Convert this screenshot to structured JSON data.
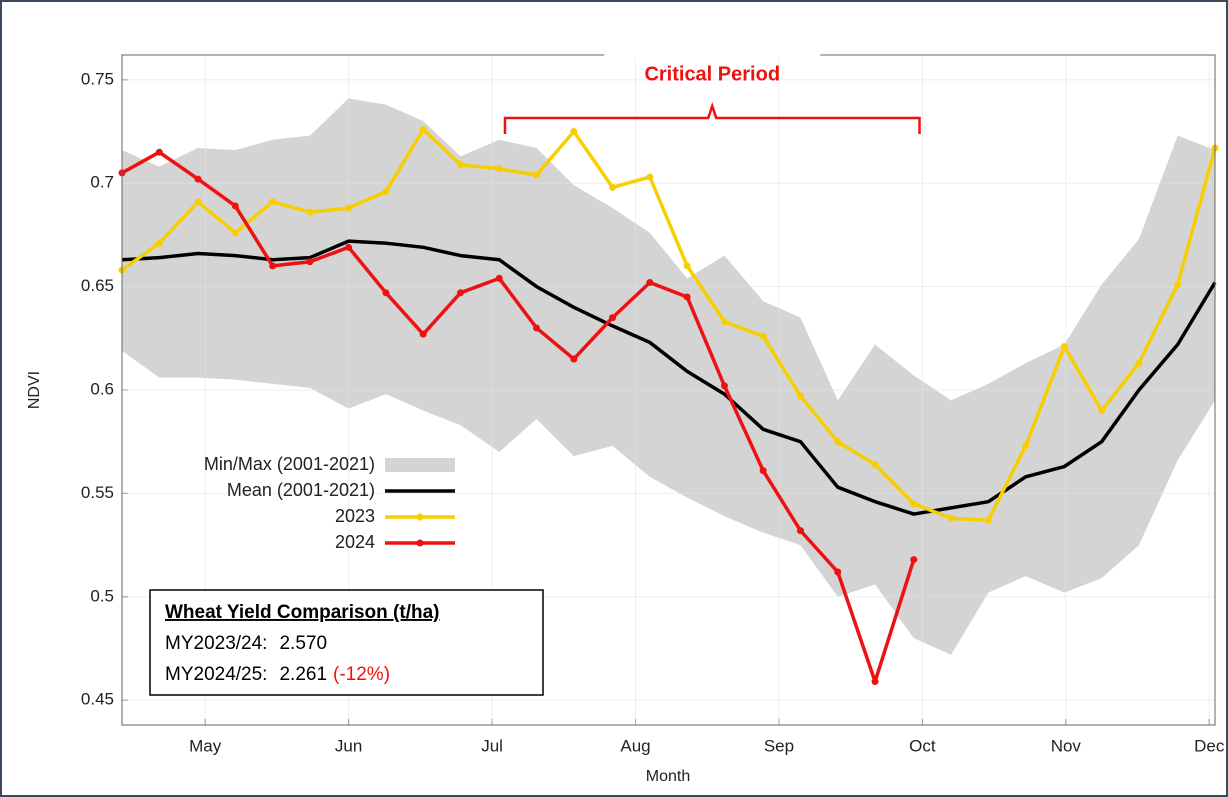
{
  "chart_data": {
    "type": "line",
    "y_label": "NDVI",
    "x_label": "Month",
    "x": [
      4.42,
      4.68,
      4.95,
      5.21,
      5.47,
      5.73,
      6.0,
      6.26,
      6.52,
      6.78,
      7.05,
      7.31,
      7.57,
      7.84,
      8.1,
      8.36,
      8.62,
      8.89,
      9.15,
      9.41,
      9.67,
      9.94,
      10.2,
      10.46,
      10.72,
      10.99,
      11.25,
      11.51,
      11.78,
      12.04
    ],
    "xlim": [
      4.42,
      12.04
    ],
    "xticks": [
      {
        "value": 5,
        "label": "May"
      },
      {
        "value": 6,
        "label": "Jun"
      },
      {
        "value": 7,
        "label": "Jul"
      },
      {
        "value": 8,
        "label": "Aug"
      },
      {
        "value": 9,
        "label": "Sep"
      },
      {
        "value": 10,
        "label": "Oct"
      },
      {
        "value": 11,
        "label": "Nov"
      },
      {
        "value": 12,
        "label": "Dec"
      }
    ],
    "ylim": [
      0.438,
      0.762
    ],
    "yticks": [
      0.45,
      0.5,
      0.55,
      0.6,
      0.65,
      0.7,
      0.75
    ],
    "grid": true,
    "band": {
      "name": "Min/Max (2001-2021)",
      "color": "#d4d4d4",
      "max": [
        0.716,
        0.708,
        0.717,
        0.716,
        0.721,
        0.723,
        0.741,
        0.738,
        0.73,
        0.713,
        0.721,
        0.717,
        0.699,
        0.688,
        0.676,
        0.654,
        0.665,
        0.643,
        0.635,
        0.595,
        0.622,
        0.607,
        0.595,
        0.603,
        0.613,
        0.622,
        0.651,
        0.673,
        0.723,
        0.716
      ],
      "min": [
        0.619,
        0.606,
        0.606,
        0.605,
        0.603,
        0.601,
        0.591,
        0.598,
        0.59,
        0.583,
        0.57,
        0.586,
        0.568,
        0.573,
        0.558,
        0.548,
        0.539,
        0.531,
        0.525,
        0.5,
        0.506,
        0.48,
        0.472,
        0.502,
        0.51,
        0.502,
        0.509,
        0.525,
        0.566,
        0.595
      ]
    },
    "series": [
      {
        "name": "Mean (2001-2021)",
        "color": "#000000",
        "marker": false,
        "values": [
          0.663,
          0.664,
          0.666,
          0.665,
          0.663,
          0.664,
          0.672,
          0.671,
          0.669,
          0.665,
          0.663,
          0.65,
          0.64,
          0.631,
          0.623,
          0.609,
          0.598,
          0.581,
          0.575,
          0.553,
          0.546,
          0.54,
          0.543,
          0.546,
          0.558,
          0.563,
          0.575,
          0.6,
          0.622,
          0.652
        ]
      },
      {
        "name": "2023",
        "color": "#f7cf00",
        "marker": true,
        "values": [
          0.658,
          0.671,
          0.691,
          0.676,
          0.691,
          0.686,
          0.688,
          0.696,
          0.726,
          0.709,
          0.707,
          0.704,
          0.725,
          0.698,
          0.703,
          0.66,
          0.633,
          0.626,
          0.597,
          0.575,
          0.564,
          0.545,
          0.538,
          0.537,
          0.573,
          0.621,
          0.59,
          0.613,
          0.651,
          0.717
        ]
      },
      {
        "name": "2024",
        "color": "#ee1111",
        "marker": true,
        "values": [
          0.705,
          0.715,
          0.702,
          0.689,
          0.66,
          0.662,
          0.669,
          0.647,
          0.627,
          0.647,
          0.654,
          0.63,
          0.615,
          0.635,
          0.652,
          0.645,
          0.602,
          0.561,
          0.532,
          0.512,
          0.459,
          0.518,
          null,
          null,
          null,
          null,
          null,
          null,
          null,
          null
        ]
      }
    ],
    "critical_period": {
      "label": "Critical Period",
      "x": [
        7.09,
        9.98
      ]
    },
    "yield_box": {
      "title": "Wheat Yield Comparison (t/ha)",
      "rows": [
        {
          "label": "MY2023/24:",
          "value": "2.570"
        },
        {
          "label": "MY2024/25:",
          "value": "2.261",
          "change": "(-12%)"
        }
      ]
    }
  }
}
